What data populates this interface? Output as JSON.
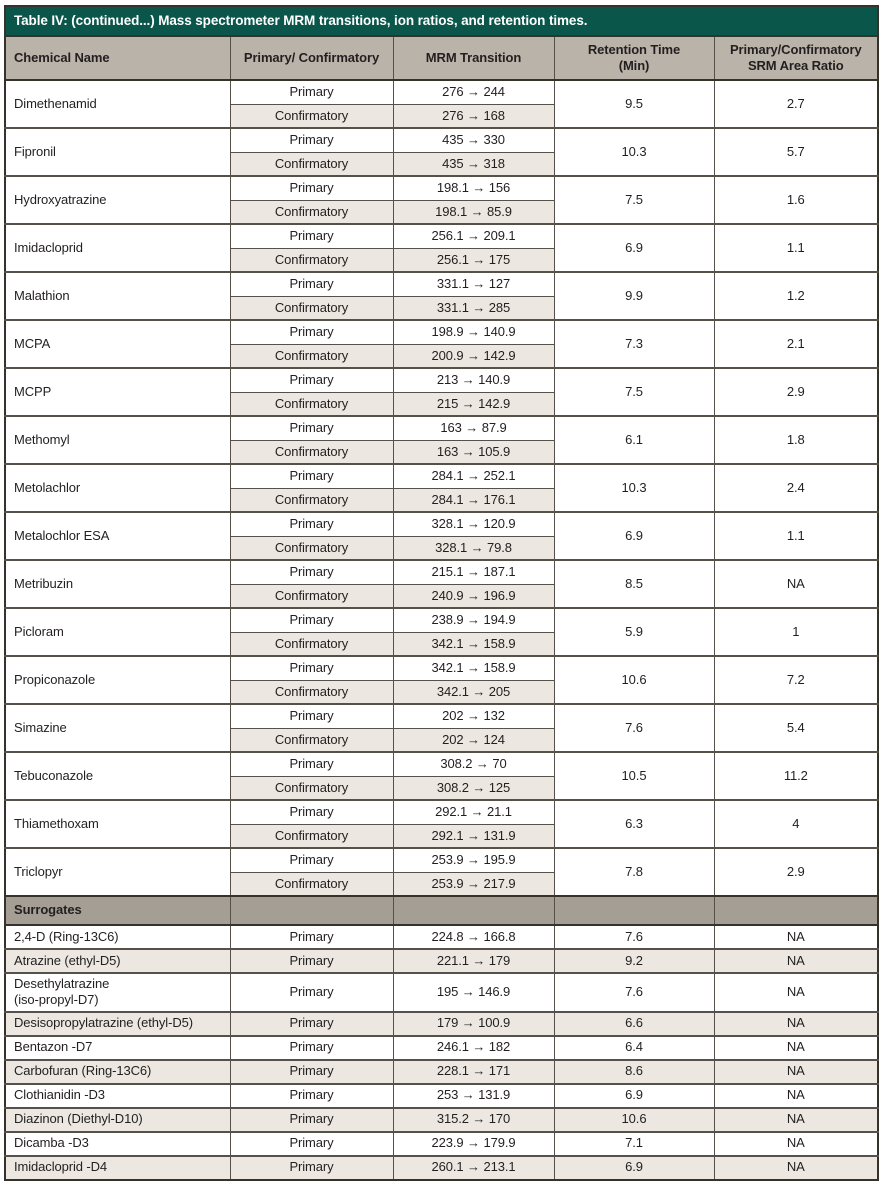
{
  "colors": {
    "title_bg": "#0a564b",
    "title_text": "#ffffff",
    "header_bg": "#b9b3a9",
    "section_bg": "#a49e94",
    "stripe_bg": "#ece7e0",
    "text": "#231f20",
    "border_dark": "#35322c",
    "border_mid": "#55514a",
    "border_light": "#9c968c"
  },
  "table": {
    "title": "Table IV: (continued...) Mass spectrometer MRM transitions, ion ratios, and retention times.",
    "columns": [
      {
        "id": "chemical-name",
        "label": "Chemical Name"
      },
      {
        "id": "primary-confirmatory",
        "label": "Primary/ Confirmatory"
      },
      {
        "id": "mrm-transition",
        "label": "MRM Transition"
      },
      {
        "id": "retention-time",
        "label": "Retention Time",
        "sub": "(Min)"
      },
      {
        "id": "srm-area-ratio",
        "label": "Primary/Confirmatory",
        "sub": "SRM Area Ratio"
      }
    ],
    "labels": {
      "primary": "Primary",
      "confirmatory": "Confirmatory"
    },
    "chemicals": [
      {
        "name": "Dimethenamid",
        "primary_transition": "276 → 244",
        "confirmatory_transition": "276 → 168",
        "retention_time": "9.5",
        "area_ratio": "2.7"
      },
      {
        "name": "Fipronil",
        "primary_transition": "435 → 330",
        "confirmatory_transition": "435 → 318",
        "retention_time": "10.3",
        "area_ratio": "5.7"
      },
      {
        "name": "Hydroxyatrazine",
        "primary_transition": "198.1 → 156",
        "confirmatory_transition": "198.1 → 85.9",
        "retention_time": "7.5",
        "area_ratio": "1.6"
      },
      {
        "name": "Imidacloprid",
        "primary_transition": "256.1 → 209.1",
        "confirmatory_transition": "256.1 → 175",
        "retention_time": "6.9",
        "area_ratio": "1.1"
      },
      {
        "name": "Malathion",
        "primary_transition": "331.1 → 127",
        "confirmatory_transition": "331.1 → 285",
        "retention_time": "9.9",
        "area_ratio": "1.2"
      },
      {
        "name": "MCPA",
        "primary_transition": "198.9 → 140.9",
        "confirmatory_transition": "200.9 → 142.9",
        "retention_time": "7.3",
        "area_ratio": "2.1"
      },
      {
        "name": "MCPP",
        "primary_transition": "213 → 140.9",
        "confirmatory_transition": "215 → 142.9",
        "retention_time": "7.5",
        "area_ratio": "2.9"
      },
      {
        "name": "Methomyl",
        "primary_transition": "163 → 87.9",
        "confirmatory_transition": "163 → 105.9",
        "retention_time": "6.1",
        "area_ratio": "1.8"
      },
      {
        "name": "Metolachlor",
        "primary_transition": "284.1 → 252.1",
        "confirmatory_transition": "284.1 → 176.1",
        "retention_time": "10.3",
        "area_ratio": "2.4"
      },
      {
        "name": "Metalochlor ESA",
        "primary_transition": "328.1 → 120.9",
        "confirmatory_transition": "328.1 → 79.8",
        "retention_time": "6.9",
        "area_ratio": "1.1"
      },
      {
        "name": "Metribuzin",
        "primary_transition": "215.1 → 187.1",
        "confirmatory_transition": "240.9 → 196.9",
        "retention_time": "8.5",
        "area_ratio": "NA"
      },
      {
        "name": "Picloram",
        "primary_transition": "238.9 → 194.9",
        "confirmatory_transition": "342.1 → 158.9",
        "retention_time": "5.9",
        "area_ratio": "1"
      },
      {
        "name": "Propiconazole",
        "primary_transition": "342.1 → 158.9",
        "confirmatory_transition": "342.1 → 205",
        "retention_time": "10.6",
        "area_ratio": "7.2"
      },
      {
        "name": "Simazine",
        "primary_transition": "202 → 132",
        "confirmatory_transition": "202 → 124",
        "retention_time": "7.6",
        "area_ratio": "5.4"
      },
      {
        "name": "Tebuconazole",
        "primary_transition": "308.2 → 70",
        "confirmatory_transition": "308.2 → 125",
        "retention_time": "10.5",
        "area_ratio": "11.2"
      },
      {
        "name": "Thiamethoxam",
        "primary_transition": "292.1 → 21.1",
        "confirmatory_transition": "292.1 → 131.9",
        "retention_time": "6.3",
        "area_ratio": "4"
      },
      {
        "name": "Triclopyr",
        "primary_transition": "253.9 → 195.9",
        "confirmatory_transition": "253.9 → 217.9",
        "retention_time": "7.8",
        "area_ratio": "2.9"
      }
    ],
    "section_label": "Surrogates",
    "surrogates": [
      {
        "name": "2,4-D (Ring-13C6)",
        "type": "Primary",
        "transition": "224.8 → 166.8",
        "retention_time": "7.6",
        "area_ratio": "NA"
      },
      {
        "name": "Atrazine (ethyl-D5)",
        "type": "Primary",
        "transition": "221.1 → 179",
        "retention_time": "9.2",
        "area_ratio": "NA"
      },
      {
        "name": "Desethylatrazine\n(iso-propyl-D7)",
        "type": "Primary",
        "transition": "195 → 146.9",
        "retention_time": "7.6",
        "area_ratio": "NA"
      },
      {
        "name": "Desisopropylatrazine (ethyl-D5)",
        "type": "Primary",
        "transition": "179 → 100.9",
        "retention_time": "6.6",
        "area_ratio": "NA"
      },
      {
        "name": "Bentazon -D7",
        "type": "Primary",
        "transition": "246.1 → 182",
        "retention_time": "6.4",
        "area_ratio": "NA"
      },
      {
        "name": "Carbofuran (Ring-13C6)",
        "type": "Primary",
        "transition": "228.1 → 171",
        "retention_time": "8.6",
        "area_ratio": "NA"
      },
      {
        "name": "Clothianidin -D3",
        "type": "Primary",
        "transition": "253 → 131.9",
        "retention_time": "6.9",
        "area_ratio": "NA"
      },
      {
        "name": "Diazinon (Diethyl-D10)",
        "type": "Primary",
        "transition": "315.2 → 170",
        "retention_time": "10.6",
        "area_ratio": "NA"
      },
      {
        "name": "Dicamba -D3",
        "type": "Primary",
        "transition": "223.9 → 179.9",
        "retention_time": "7.1",
        "area_ratio": "NA"
      },
      {
        "name": "Imidacloprid -D4",
        "type": "Primary",
        "transition": "260.1 → 213.1",
        "retention_time": "6.9",
        "area_ratio": "NA"
      }
    ]
  }
}
